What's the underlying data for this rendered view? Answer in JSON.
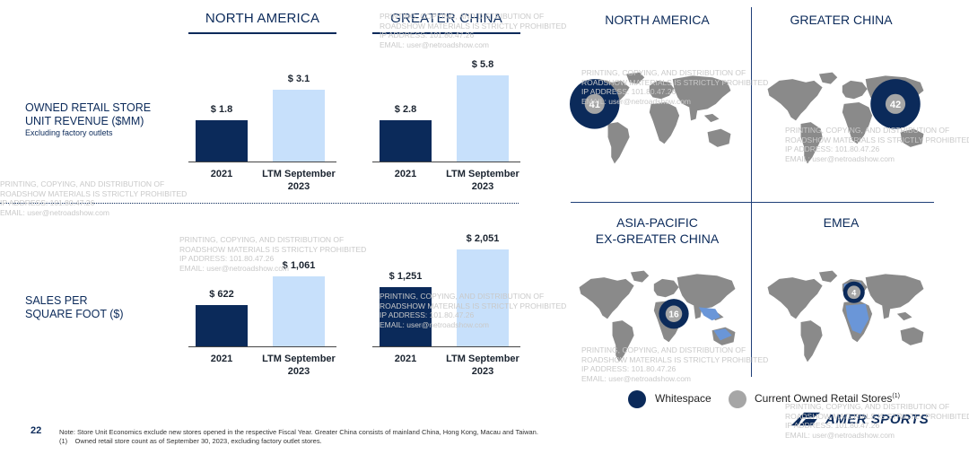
{
  "page_number": "22",
  "left": {
    "sections": [
      {
        "title": "NORTH AMERICA"
      },
      {
        "title": "GREATER CHINA"
      }
    ],
    "rows": [
      {
        "label_line1": "OWNED RETAIL STORE",
        "label_line2": "UNIT REVENUE ($MM)",
        "sublabel": "Excluding factory outlets"
      },
      {
        "label_line1": "SALES PER",
        "label_line2": "SQUARE FOOT ($)"
      }
    ]
  },
  "chart_data": [
    {
      "type": "bar",
      "title": "NORTH AMERICA",
      "row": "OWNED RETAIL STORE UNIT REVENUE ($MM)",
      "categories": [
        "2021",
        "LTM September 2023"
      ],
      "values": [
        1.8,
        3.1
      ],
      "labels": [
        "$ 1.8",
        "$ 3.1"
      ]
    },
    {
      "type": "bar",
      "title": "GREATER CHINA",
      "row": "OWNED RETAIL STORE UNIT REVENUE ($MM)",
      "categories": [
        "2021",
        "LTM September 2023"
      ],
      "values": [
        2.8,
        5.8
      ],
      "labels": [
        "$ 2.8",
        "$ 5.8"
      ]
    },
    {
      "type": "bar",
      "title": "NORTH AMERICA",
      "row": "SALES PER SQUARE FOOT ($)",
      "categories": [
        "2021",
        "LTM September 2023"
      ],
      "values": [
        622,
        1061
      ],
      "labels": [
        "$ 622",
        "$ 1,061"
      ]
    },
    {
      "type": "bar",
      "title": "GREATER CHINA",
      "row": "SALES PER SQUARE FOOT ($)",
      "categories": [
        "2021",
        "LTM September 2023"
      ],
      "values": [
        1251,
        2051
      ],
      "labels": [
        "$ 1,251",
        "$ 2,051"
      ]
    }
  ],
  "cat_labels": {
    "c2021": "2021",
    "ltm_line1": "LTM September",
    "ltm_line2": "2023"
  },
  "maps": [
    {
      "title_line1": "NORTH AMERICA",
      "title_line2": "",
      "count": "41"
    },
    {
      "title_line1": "GREATER CHINA",
      "title_line2": "",
      "count": "42"
    },
    {
      "title_line1": "ASIA-PACIFIC",
      "title_line2": "EX-GREATER CHINA",
      "count": "16"
    },
    {
      "title_line1": "EMEA",
      "title_line2": "",
      "count": "4"
    }
  ],
  "legend": {
    "whitespace": "Whitespace",
    "current": "Current Owned Retail Stores",
    "current_sup": "(1)"
  },
  "notes": {
    "line1": "Note: Store Unit Economics exclude new stores opened in the respective Fiscal Year. Greater China consists of mainland China, Hong Kong, Macau and Taiwan.",
    "line2_marker": "(1)",
    "line2": "Owned retail store count as of September 30, 2023, excluding factory outlet stores."
  },
  "logo": {
    "text": "AMER SPORTS"
  },
  "watermark": {
    "line1": "PRINTING, COPYING, AND DISTRIBUTION OF",
    "line2": "ROADSHOW MATERIALS IS STRICTLY PROHIBITED",
    "line3": "IP ADDRESS: 101.80.47.26",
    "line4": "EMAIL: user@netroadshow.com"
  },
  "colors": {
    "dark": "#0b2a5a",
    "light": "#c7e0fb",
    "map_gray": "#8a8a8a",
    "map_blue": "#6a96d8",
    "bubble_gray": "#a6a6a6"
  }
}
